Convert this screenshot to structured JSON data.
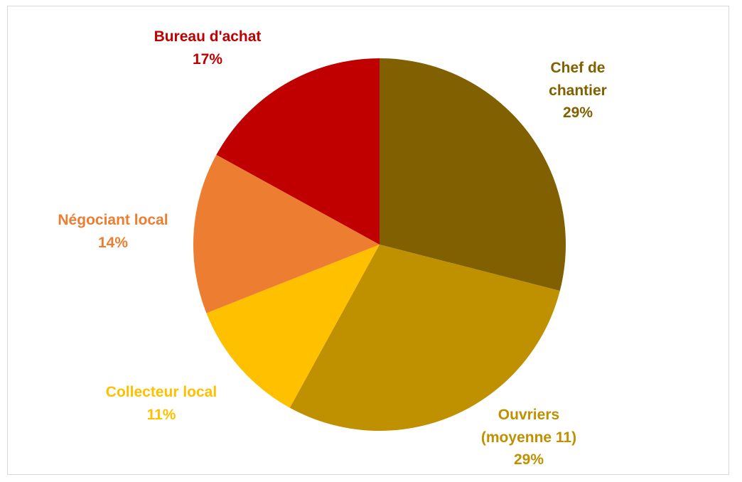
{
  "chart_data": {
    "type": "pie",
    "start_angle_deg": 0,
    "direction": "clockwise",
    "slices": [
      {
        "label": "Chef de chantier",
        "label_lines": [
          "Chef de",
          "chantier"
        ],
        "value": 29,
        "percent_label": "29%",
        "color": "#806000"
      },
      {
        "label": "Ouvriers (moyenne 11)",
        "label_lines": [
          "Ouvriers",
          "(moyenne 11)"
        ],
        "value": 29,
        "percent_label": "29%",
        "color": "#BF9000"
      },
      {
        "label": "Collecteur local",
        "label_lines": [
          "Collecteur local"
        ],
        "value": 11,
        "percent_label": "11%",
        "color": "#FFC000"
      },
      {
        "label": "Négociant local",
        "label_lines": [
          "Négociant local"
        ],
        "value": 14,
        "percent_label": "14%",
        "color": "#ED7D31"
      },
      {
        "label": "Bureau d'achat",
        "label_lines": [
          "Bureau d'achat"
        ],
        "value": 17,
        "percent_label": "17%",
        "color": "#C00000"
      }
    ]
  }
}
